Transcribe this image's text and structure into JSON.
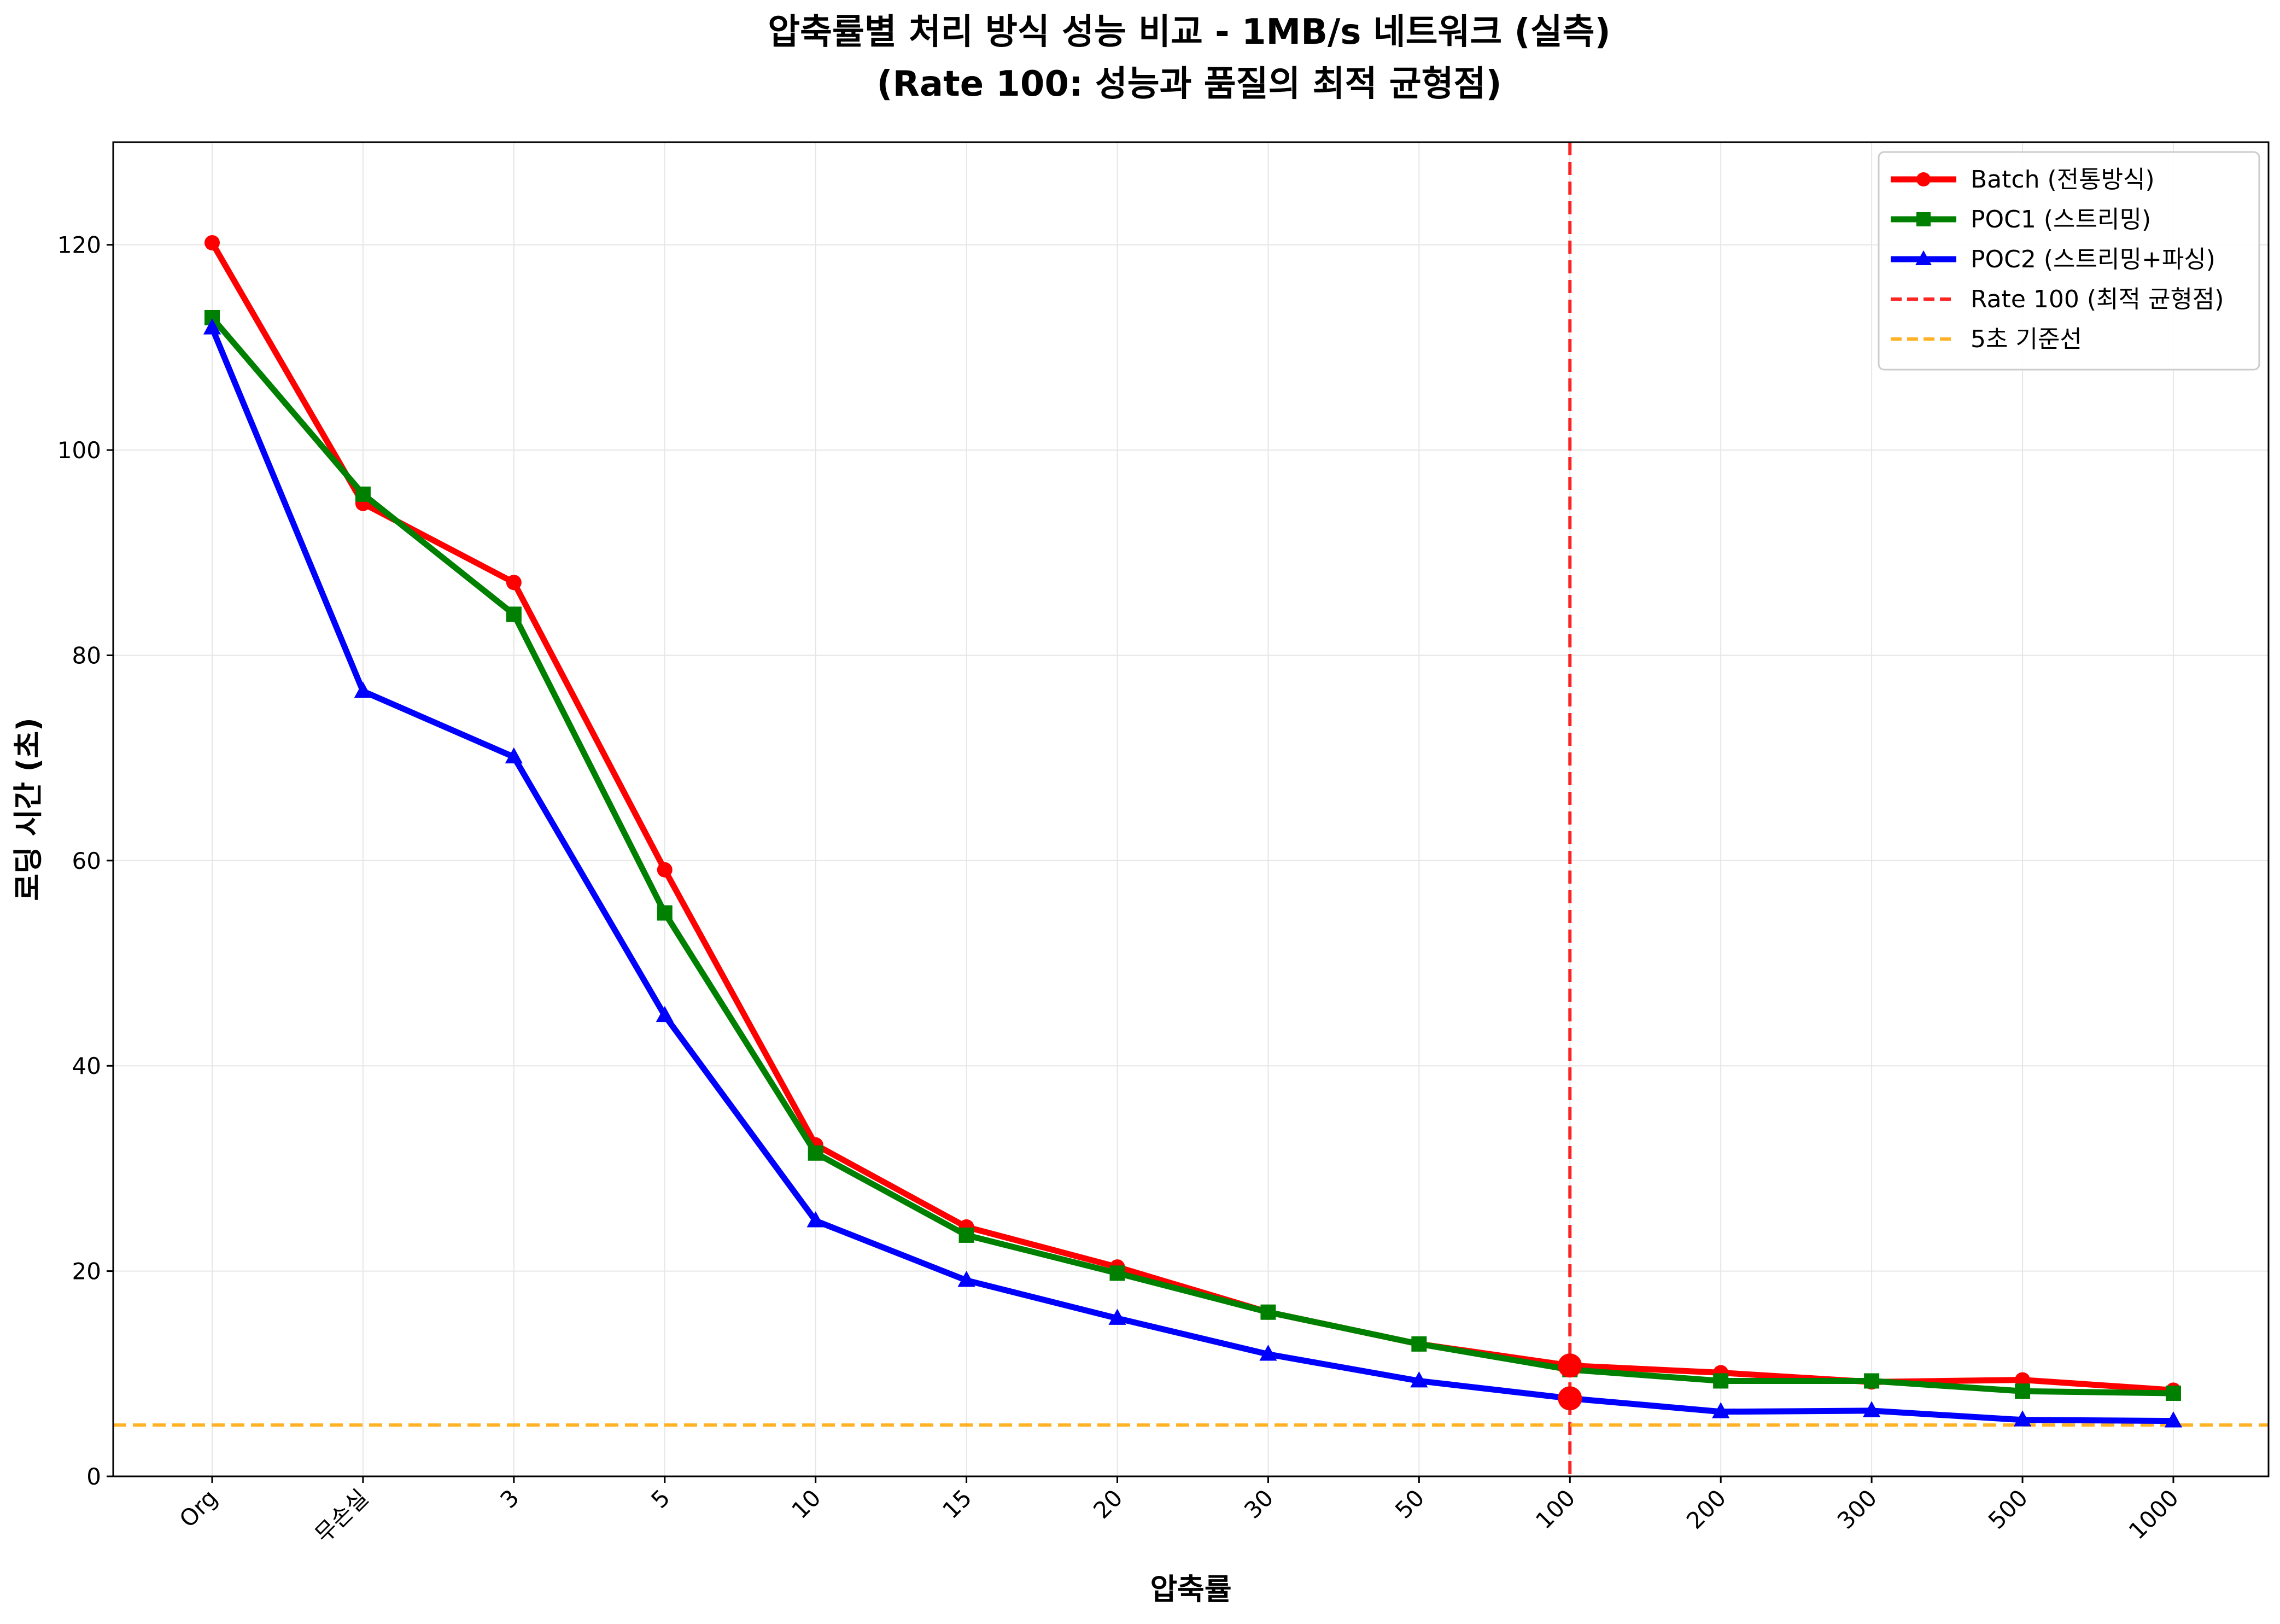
{
  "chart_data": {
    "type": "line",
    "title": "압축률별 처리 방식 성능 비교 - 1MB/s 네트워크 (실측)",
    "subtitle": "(Rate 100: 성능과 품질의 최적 균형점)",
    "xlabel": "압축률",
    "ylabel": "로딩 시간 (초)",
    "categories": [
      "Org",
      "무손실",
      "3",
      "5",
      "10",
      "15",
      "20",
      "30",
      "50",
      "100",
      "200",
      "300",
      "500",
      "1000"
    ],
    "ylim": [
      0,
      130
    ],
    "yticks": [
      0,
      20,
      40,
      60,
      80,
      100,
      120
    ],
    "grid": true,
    "legend_position": "top-right",
    "series": [
      {
        "name": "Batch (전통방식)",
        "color": "#ff0000",
        "marker": "circle",
        "values": [
          120.2,
          94.8,
          87.1,
          59.1,
          32.3,
          24.3,
          20.4,
          16.0,
          12.9,
          10.8,
          10.1,
          9.2,
          9.4,
          8.4
        ]
      },
      {
        "name": "POC1 (스트리밍)",
        "color": "#008000",
        "marker": "square",
        "values": [
          112.9,
          95.7,
          84.0,
          54.9,
          31.5,
          23.5,
          19.8,
          16.0,
          12.9,
          10.4,
          9.3,
          9.3,
          8.3,
          8.1
        ]
      },
      {
        "name": "POC2 (스트리밍+파싱)",
        "color": "#0000ff",
        "marker": "triangle",
        "values": [
          111.9,
          76.5,
          70.1,
          44.9,
          24.9,
          19.1,
          15.4,
          11.9,
          9.3,
          7.6,
          6.3,
          6.4,
          5.5,
          5.4
        ]
      }
    ],
    "reference_lines": [
      {
        "name": "Rate 100 (최적 균형점)",
        "orientation": "vertical",
        "category": "100",
        "color": "#ff0000",
        "style": "dashed"
      },
      {
        "name": "5초 기준선",
        "orientation": "horizontal",
        "value": 5,
        "color": "#ffa500",
        "style": "dashed"
      }
    ],
    "highlight_points": [
      {
        "category": "100",
        "value": 10.8,
        "color": "#ff0000"
      },
      {
        "category": "100",
        "value": 7.6,
        "color": "#ff0000"
      }
    ]
  }
}
